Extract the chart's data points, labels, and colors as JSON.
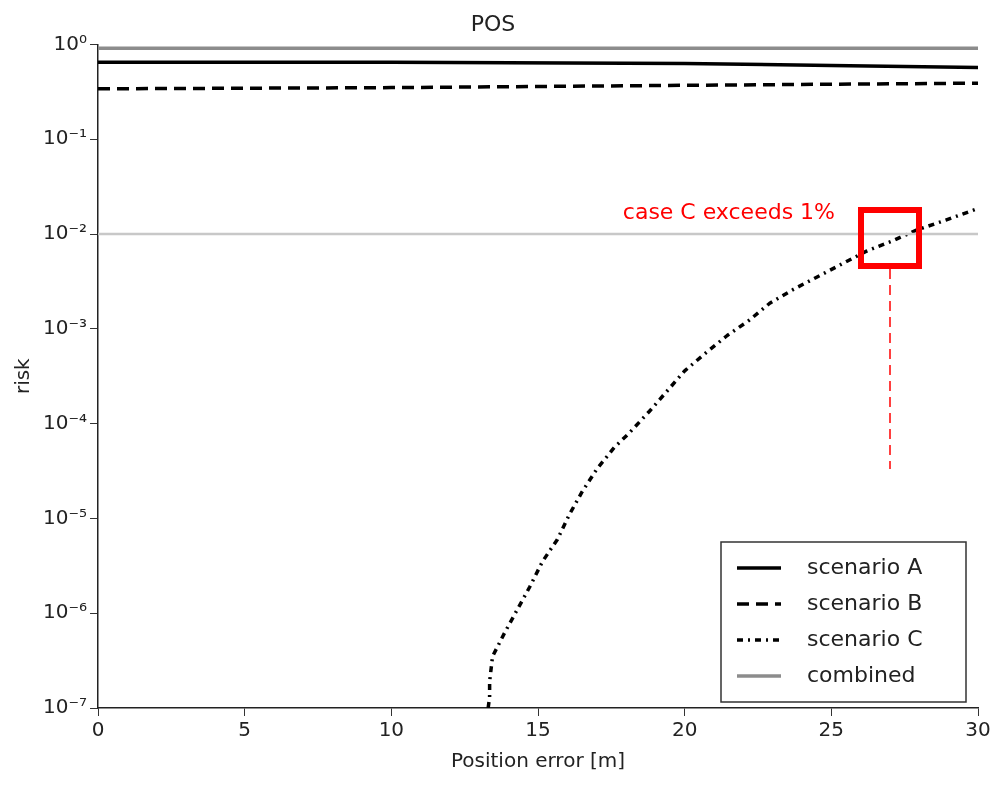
{
  "chart_data": {
    "type": "line",
    "title": "POS",
    "xlabel": "Position error [m]",
    "ylabel": "risk",
    "xlim": [
      0,
      30
    ],
    "xticks": [
      0,
      5,
      10,
      15,
      20,
      25,
      30
    ],
    "ylim": [
      1e-07,
      1
    ],
    "log": "y",
    "yticks": [
      {
        "value": 1e-07,
        "label": "10⁻⁷"
      },
      {
        "value": 1e-06,
        "label": "10⁻⁶"
      },
      {
        "value": 1e-05,
        "label": "10⁻⁵"
      },
      {
        "value": 0.0001,
        "label": "10⁻⁴"
      },
      {
        "value": 0.001,
        "label": "10⁻³"
      },
      {
        "value": 0.01,
        "label": "10⁻²"
      },
      {
        "value": 0.1,
        "label": "10⁻¹"
      },
      {
        "value": 1,
        "label": "10⁰"
      }
    ],
    "grid": false,
    "legend": "bottom right",
    "ref_lines": [
      {
        "axis": "y",
        "value": 0.01,
        "color": "#c8c8c8"
      }
    ],
    "annotations": [
      {
        "text": "case C exceeds 1%",
        "x": 27,
        "y": 0.01
      }
    ],
    "series": [
      {
        "name": "scenario A",
        "color": "#000000",
        "line_style": "solid",
        "x": [
          0,
          10,
          20,
          25,
          30
        ],
        "values": [
          0.65,
          0.65,
          0.63,
          0.6,
          0.57
        ]
      },
      {
        "name": "scenario B",
        "color": "#000000",
        "line_style": "dashed",
        "x": [
          0,
          10,
          20,
          25,
          30
        ],
        "values": [
          0.34,
          0.35,
          0.37,
          0.38,
          0.39
        ]
      },
      {
        "name": "scenario C",
        "color": "#000000",
        "line_style": "dotted",
        "x": [
          13.3,
          13.35,
          13.35,
          13.45,
          13.86,
          14.3,
          14.72,
          15.15,
          15.66,
          16.07,
          16.5,
          17.0,
          17.6,
          18.1,
          18.8,
          20.0,
          20.7,
          21.45,
          22.2,
          22.9,
          23.7,
          24.5,
          25.4,
          26.2,
          27.1,
          27.9,
          28.9,
          30
        ],
        "values": [
          1e-07,
          1.3e-07,
          1.9e-07,
          3.5e-07,
          6.2e-07,
          1.1e-06,
          1.9e-06,
          3.5e-06,
          6e-06,
          1.1e-05,
          1.9e-05,
          3.3e-05,
          5.6e-05,
          7.9e-05,
          0.000135,
          0.00036,
          0.00055,
          0.00085,
          0.00123,
          0.00186,
          0.0026,
          0.0035,
          0.0049,
          0.0066,
          0.0085,
          0.011,
          0.014,
          0.0186
        ]
      },
      {
        "name": "combined",
        "color": "#8c8c8c",
        "line_style": "solid",
        "x": [
          0,
          30
        ],
        "values": [
          0.91,
          0.91
        ]
      }
    ]
  }
}
